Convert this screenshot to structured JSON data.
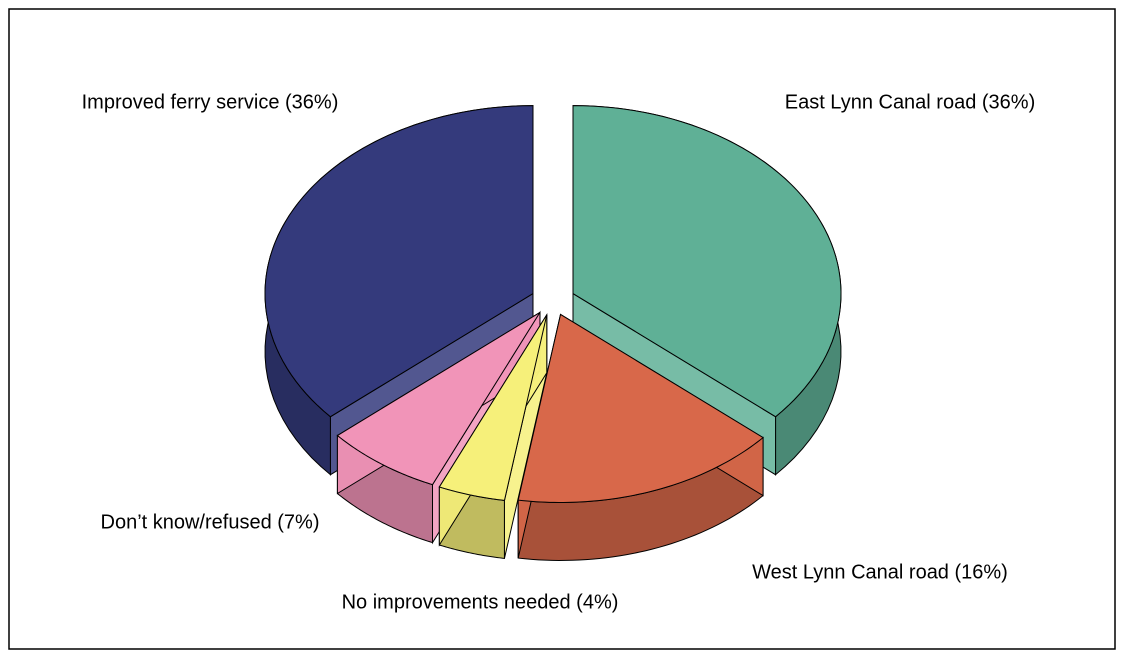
{
  "chart_data": {
    "type": "pie",
    "categories": [
      "East Lynn Canal road (36%)",
      "West Lynn Canal road (16%)",
      "No improvements needed (4%)",
      "Don’t know/refused (7%)",
      "Improved ferry service (36%)"
    ],
    "values": [
      36,
      16,
      4,
      7,
      36
    ],
    "colors": [
      "#5fb096",
      "#d8684a",
      "#f6f07a",
      "#f194b8",
      "#343a7c"
    ]
  }
}
